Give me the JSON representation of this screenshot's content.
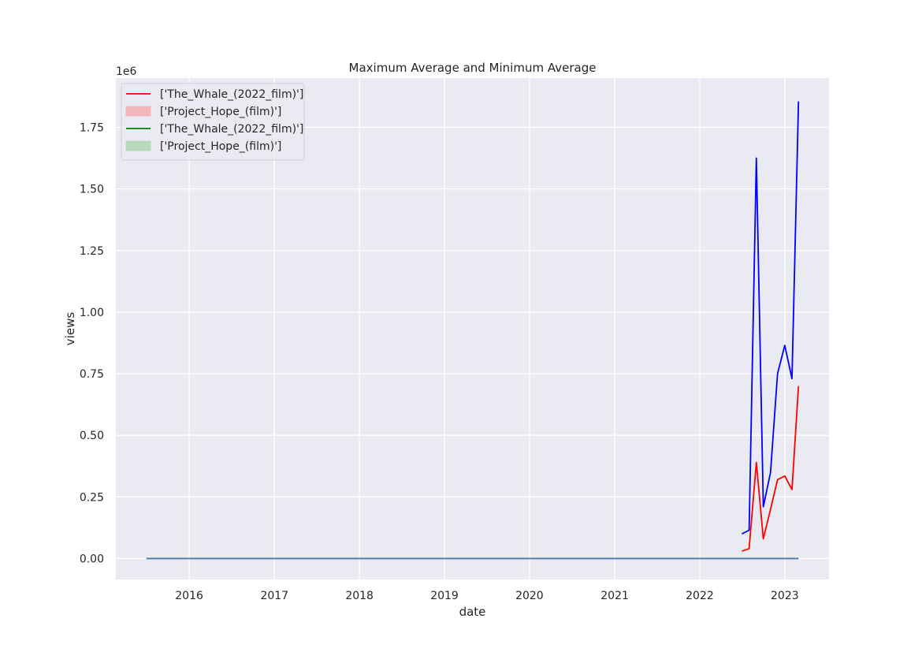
{
  "chart_data": {
    "type": "line",
    "title": "Maximum Average and Minimum Average",
    "xlabel": "date",
    "ylabel": "views",
    "y_offset_label": "1e6",
    "xlim": [
      "2015-02-20",
      "2023-07-10"
    ],
    "ylim": [
      -0.085,
      1.95
    ],
    "y_scale_note": "values in millions (1e6)",
    "x_ticks": [
      "2016-01-01",
      "2017-01-01",
      "2018-01-01",
      "2019-01-01",
      "2020-01-01",
      "2021-01-01",
      "2022-01-01",
      "2023-01-01"
    ],
    "x_tick_labels": [
      "2016",
      "2017",
      "2018",
      "2019",
      "2020",
      "2021",
      "2022",
      "2023"
    ],
    "y_ticks": [
      0.0,
      0.25,
      0.5,
      0.75,
      1.0,
      1.25,
      1.5,
      1.75
    ],
    "y_tick_labels": [
      "0.00",
      "0.25",
      "0.50",
      "0.75",
      "1.00",
      "1.25",
      "1.50",
      "1.75"
    ],
    "grid": true,
    "background": "#eaeaf2",
    "legend_position": "upper-left",
    "legend": [
      {
        "label": "['The_Whale_(2022_film)']",
        "kind": "line",
        "color": "#ff0000"
      },
      {
        "label": "['Project_Hope_(film)']",
        "kind": "patch",
        "color": "#f4b6bd"
      },
      {
        "label": "['The_Whale_(2022_film)']",
        "kind": "line",
        "color": "#008000"
      },
      {
        "label": "['Project_Hope_(film)']",
        "kind": "patch",
        "color": "#b9d9bb"
      }
    ],
    "series": [
      {
        "color": "#0000ff",
        "points": [
          {
            "x": "2022-07-01",
            "y": 0.1
          },
          {
            "x": "2022-08-01",
            "y": 0.115
          },
          {
            "x": "2022-09-01",
            "y": 1.625
          },
          {
            "x": "2022-10-01",
            "y": 0.21
          },
          {
            "x": "2022-11-01",
            "y": 0.35
          },
          {
            "x": "2022-12-01",
            "y": 0.75
          },
          {
            "x": "2023-01-01",
            "y": 0.865
          },
          {
            "x": "2023-02-01",
            "y": 0.73
          },
          {
            "x": "2023-03-01",
            "y": 1.855
          }
        ]
      },
      {
        "color": "#ff0000",
        "points": [
          {
            "x": "2022-07-01",
            "y": 0.03
          },
          {
            "x": "2022-08-01",
            "y": 0.04
          },
          {
            "x": "2022-09-01",
            "y": 0.39
          },
          {
            "x": "2022-10-01",
            "y": 0.08
          },
          {
            "x": "2022-11-01",
            "y": 0.2
          },
          {
            "x": "2022-12-01",
            "y": 0.32
          },
          {
            "x": "2023-01-01",
            "y": 0.335
          },
          {
            "x": "2023-02-01",
            "y": 0.28
          },
          {
            "x": "2023-03-01",
            "y": 0.7
          }
        ]
      },
      {
        "color": "#4c72b0",
        "points": [
          {
            "x": "2015-07-01",
            "y": 0.0
          },
          {
            "x": "2023-03-01",
            "y": 0.0
          }
        ]
      }
    ]
  }
}
